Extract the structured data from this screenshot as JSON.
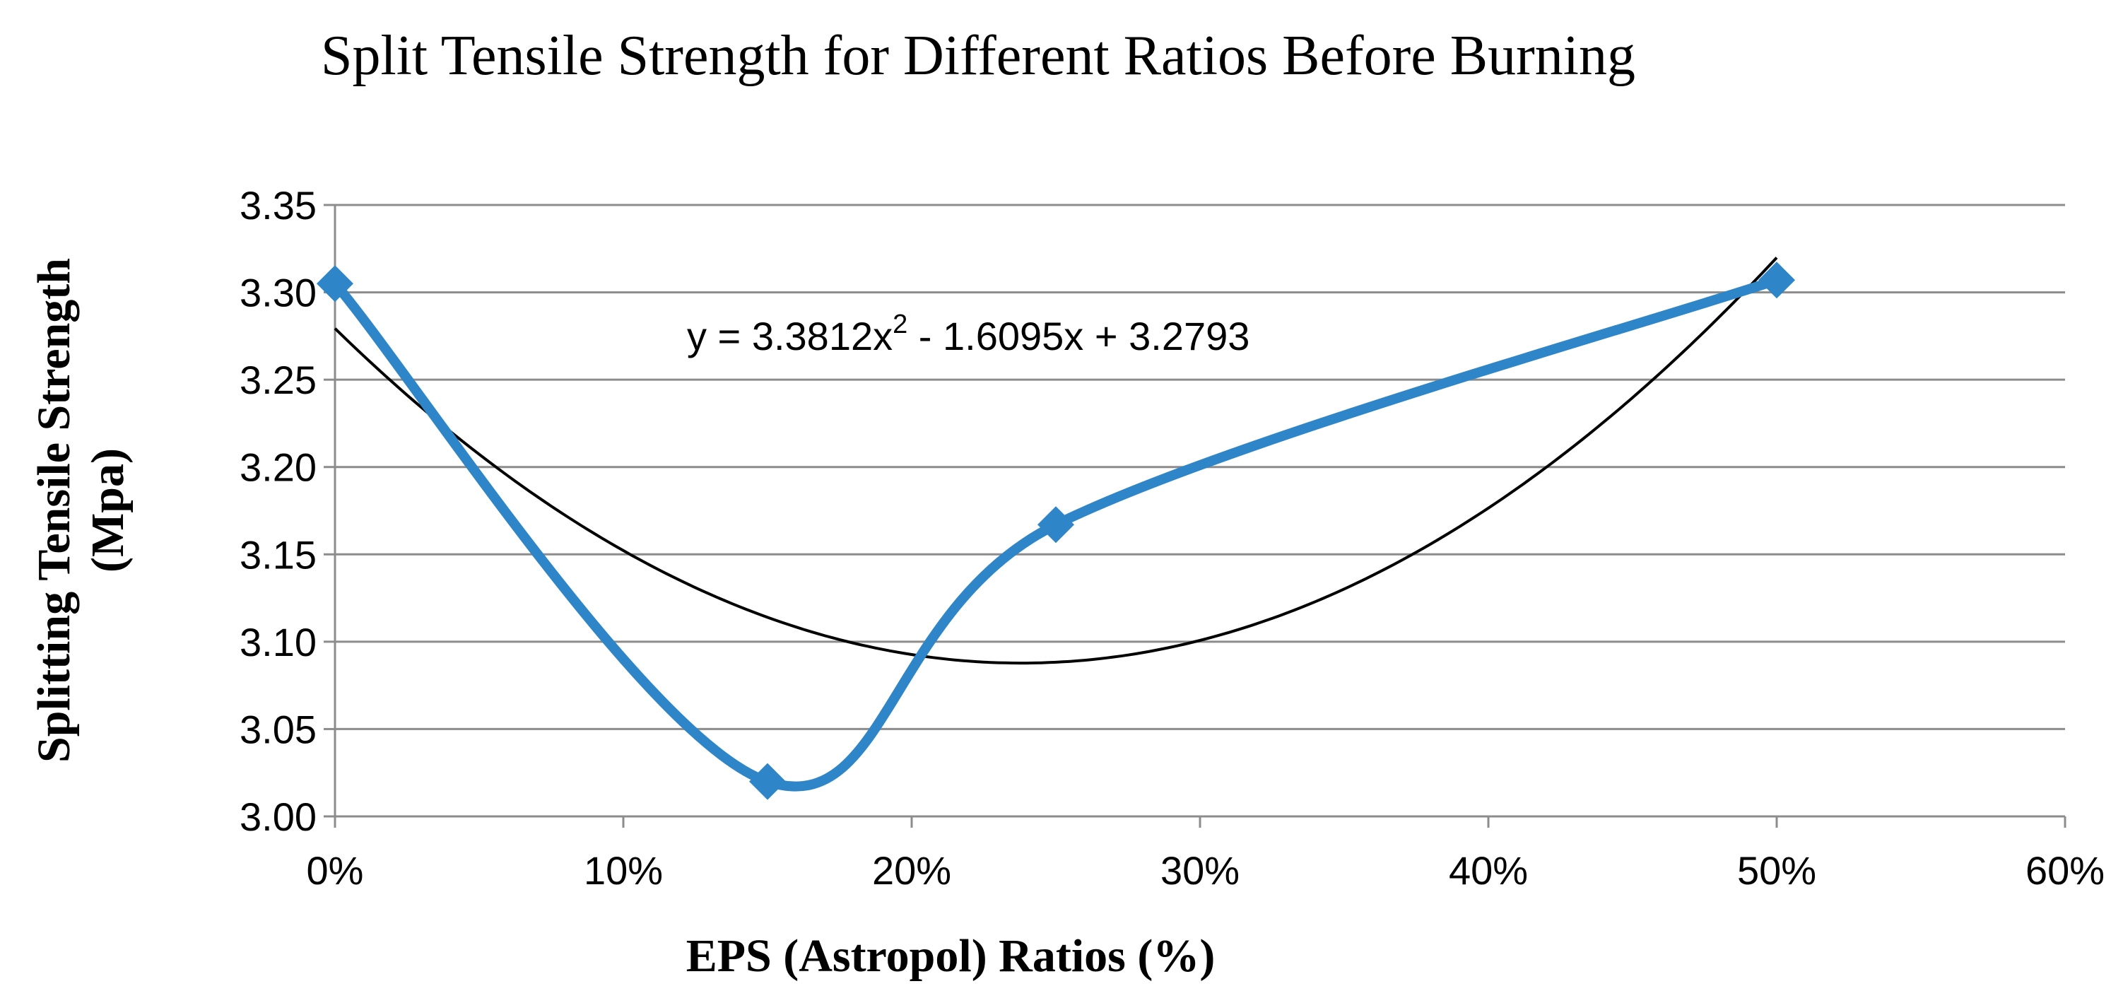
{
  "chart_data": {
    "type": "line",
    "title": "Split Tensile Strength for Different Ratios Before Burning",
    "xlabel": "EPS (Astropol) Ratios (%)",
    "ylabel_line1": "Splitting  Tensile Strength",
    "ylabel_line2": "(Mpa)",
    "xlim": [
      0,
      0.6
    ],
    "ylim": [
      3.0,
      3.35
    ],
    "x_ticks": [
      0,
      0.1,
      0.2,
      0.3,
      0.4,
      0.5,
      0.6
    ],
    "x_tick_labels": [
      "0%",
      "10%",
      "20%",
      "30%",
      "40%",
      "50%",
      "60%"
    ],
    "y_ticks": [
      3.0,
      3.05,
      3.1,
      3.15,
      3.2,
      3.25,
      3.3,
      3.35
    ],
    "y_tick_labels": [
      "3.00",
      "3.05",
      "3.10",
      "3.15",
      "3.20",
      "3.25",
      "3.30",
      "3.35"
    ],
    "grid": true,
    "series": [
      {
        "name": "Split Tensile Strength",
        "color": "#2E86C8",
        "marker": "diamond",
        "x": [
          0,
          0.15,
          0.25,
          0.5
        ],
        "y": [
          3.305,
          3.02,
          3.167,
          3.307
        ]
      }
    ],
    "trendline": {
      "type": "polynomial",
      "color": "#000000",
      "coefficients": [
        3.3812,
        -1.6095,
        3.2793
      ],
      "equation_parts": {
        "before_exp": "y = 3.3812x",
        "exponent": "2",
        "after_exp": " - 1.6095x + 3.2793"
      }
    }
  }
}
